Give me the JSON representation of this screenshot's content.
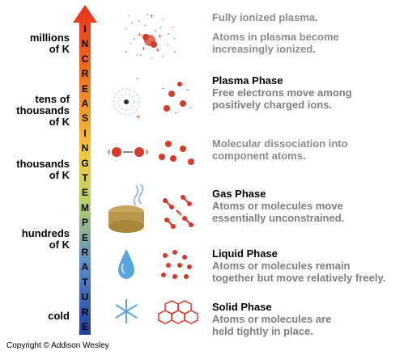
{
  "temperature_labels": [
    "millions\nof K",
    "tens of\nthousands\nof K",
    "thousands\nof K",
    "hundreds\nof K",
    "cold"
  ],
  "arrow_text": "INCREASING TEMPERATURE",
  "descriptions": {
    "fully_ionized": "Fully ionized plasma.",
    "increasingly_ionized": "Atoms in plasma become\nincreasingly ionized.",
    "plasma_title": "Plasma Phase",
    "plasma_desc": "Free electrons move among\npositively charged ions.",
    "dissociation": "Molecular dissociation into\ncomponent atoms.",
    "gas_title": "Gas Phase",
    "gas_desc": "Atoms or molecules move\nessentially unconstrained.",
    "liquid_title": "Liquid Phase",
    "liquid_desc": "Atoms or molecules remain\ntogether but move relatively freely.",
    "solid_title": "Solid Phase",
    "solid_desc": "Atoms or molecules are\nheld tightly in place."
  },
  "copyright": "Copyright © Addison Wesley",
  "colors": {
    "arrow_top": "#e8311f",
    "arrow_mid": "#f7c93c",
    "arrow_bottom": "#1f3fa0",
    "description_grey": "#7f7f7f",
    "atom_red": "#d63a2a",
    "electron_blue": "#2a63b8"
  }
}
